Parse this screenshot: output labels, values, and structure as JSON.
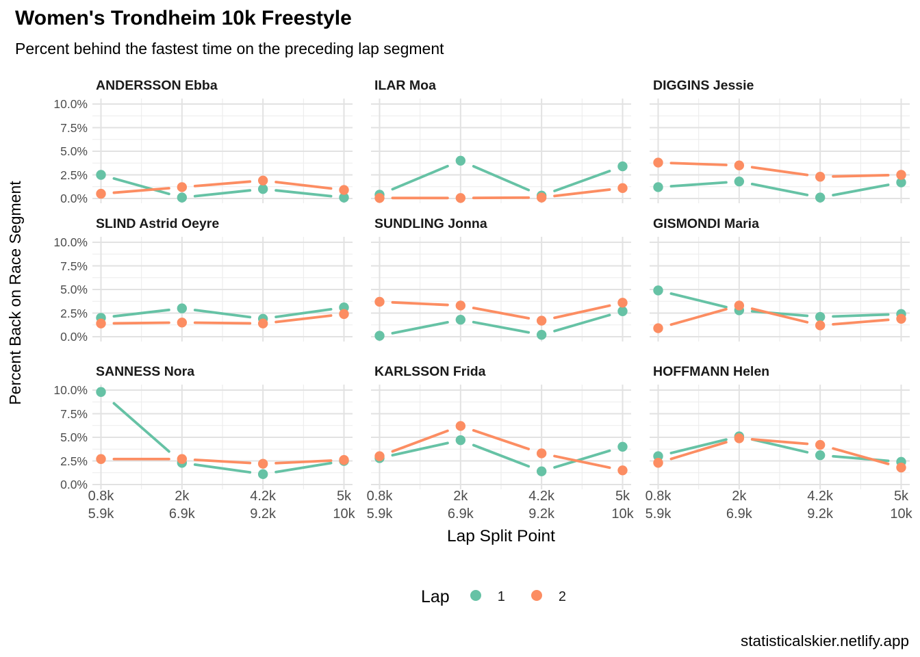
{
  "title": "Women's Trondheim 10k Freestyle",
  "subtitle": "Percent behind the fastest time on the preceding lap segment",
  "footer": "statisticalskier.netlify.app",
  "colors": {
    "lap1": "#66C2A5",
    "lap2": "#FC8D62",
    "grid_major": "#E2E2E2",
    "grid_minor": "#ECECEC",
    "tick_text": "#4D4D4D"
  },
  "chart_data": {
    "type": "line",
    "title": "Women's Trondheim 10k Freestyle",
    "subtitle": "Percent behind the fastest time on the preceding lap segment",
    "xlabel": "Lap Split Point",
    "ylabel": "Percent Back on Race Segment",
    "ylim": [
      0,
      10
    ],
    "y_ticks": [
      {
        "value": 10,
        "label": "10.0%"
      },
      {
        "value": 7.5,
        "label": "7.5%"
      },
      {
        "value": 5,
        "label": "5.0%"
      },
      {
        "value": 2.5,
        "label": "2.5%"
      },
      {
        "value": 0,
        "label": "0.0%"
      }
    ],
    "x_ticks": [
      {
        "line1": "0.8k",
        "line2": "5.9k"
      },
      {
        "line1": "2k",
        "line2": "6.9k"
      },
      {
        "line1": "4.2k",
        "line2": "9.2k"
      },
      {
        "line1": "5k",
        "line2": "10k"
      }
    ],
    "grid": "on",
    "legend": {
      "title": "Lap",
      "position": "bottom",
      "entries": [
        {
          "label": "1",
          "color": "#66C2A5"
        },
        {
          "label": "2",
          "color": "#FC8D62"
        }
      ]
    },
    "facets": [
      {
        "skier": "ANDERSSON Ebba",
        "lap1": [
          2.5,
          0.1,
          1.0,
          0.1
        ],
        "lap2": [
          0.5,
          1.2,
          1.9,
          0.9
        ]
      },
      {
        "skier": "ILAR Moa",
        "lap1": [
          0.4,
          4.0,
          0.3,
          3.4
        ],
        "lap2": [
          0.05,
          0.05,
          0.1,
          1.1
        ]
      },
      {
        "skier": "DIGGINS Jessie",
        "lap1": [
          1.2,
          1.8,
          0.1,
          1.7
        ],
        "lap2": [
          3.8,
          3.5,
          2.3,
          2.5
        ]
      },
      {
        "skier": "SLIND Astrid Oeyre",
        "lap1": [
          2.0,
          3.0,
          1.9,
          3.1
        ],
        "lap2": [
          1.4,
          1.5,
          1.4,
          2.4
        ]
      },
      {
        "skier": "SUNDLING Jonna",
        "lap1": [
          0.1,
          1.8,
          0.2,
          2.7
        ],
        "lap2": [
          3.7,
          3.3,
          1.7,
          3.6
        ]
      },
      {
        "skier": "GISMONDI Maria",
        "lap1": [
          4.9,
          2.8,
          2.1,
          2.4
        ],
        "lap2": [
          0.9,
          3.3,
          1.2,
          1.9
        ]
      },
      {
        "skier": "SANNESS Nora",
        "lap1": [
          9.8,
          2.3,
          1.1,
          2.5
        ],
        "lap2": [
          2.7,
          2.7,
          2.2,
          2.6
        ]
      },
      {
        "skier": "KARLSSON Frida",
        "lap1": [
          2.8,
          4.7,
          1.4,
          4.0
        ],
        "lap2": [
          3.0,
          6.2,
          3.3,
          1.5
        ]
      },
      {
        "skier": "HOFFMANN Helen",
        "lap1": [
          3.0,
          5.1,
          3.1,
          2.4
        ],
        "lap2": [
          2.3,
          4.9,
          4.2,
          1.8
        ]
      }
    ]
  }
}
